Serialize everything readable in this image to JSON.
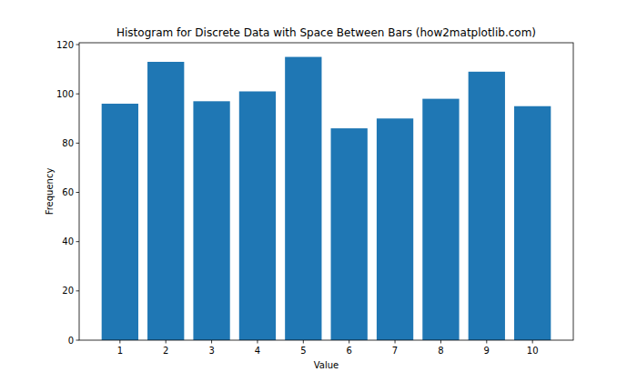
{
  "chart_data": {
    "type": "bar",
    "title": "Histogram for Discrete Data with Space Between Bars (how2matplotlib.com)",
    "x_label": "Value",
    "y_label": "Frequency",
    "categories": [
      "1",
      "2",
      "3",
      "4",
      "5",
      "6",
      "7",
      "8",
      "9",
      "10"
    ],
    "values": [
      96,
      113,
      97,
      101,
      115,
      86,
      90,
      98,
      109,
      95
    ],
    "color": "#1f77b4",
    "ylim": [
      0,
      120.75
    ],
    "yticks": [
      0,
      20,
      40,
      60,
      80,
      100,
      120
    ],
    "grid": false
  }
}
